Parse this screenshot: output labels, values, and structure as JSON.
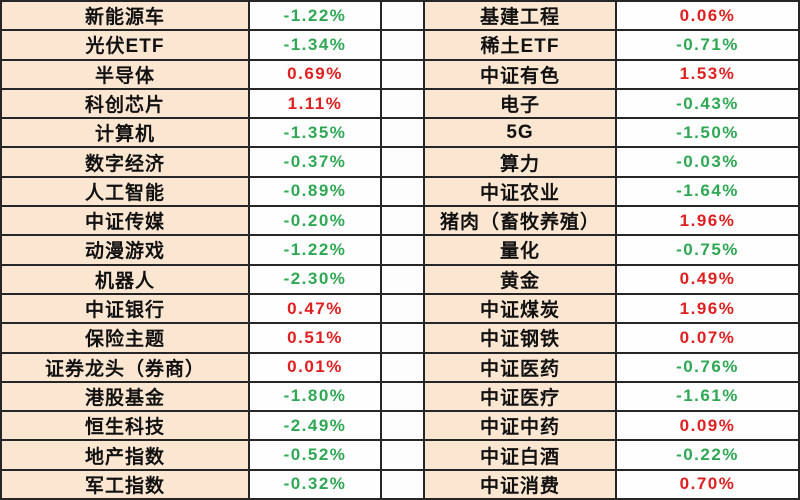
{
  "chart_data": {
    "type": "table",
    "legend_note": "positive change rendered red, negative change rendered green",
    "rows": [
      {
        "left_name": "新能源车",
        "left_change": "-1.22%",
        "right_name": "基建工程",
        "right_change": "0.06%"
      },
      {
        "left_name": "光伏ETF",
        "left_change": "-1.34%",
        "right_name": "稀土ETF",
        "right_change": "-0.71%"
      },
      {
        "left_name": "半导体",
        "left_change": "0.69%",
        "right_name": "中证有色",
        "right_change": "1.53%"
      },
      {
        "left_name": "科创芯片",
        "left_change": "1.11%",
        "right_name": "电子",
        "right_change": "-0.43%"
      },
      {
        "left_name": "计算机",
        "left_change": "-1.35%",
        "right_name": "5G",
        "right_change": "-1.50%"
      },
      {
        "left_name": "数字经济",
        "left_change": "-0.37%",
        "right_name": "算力",
        "right_change": "-0.03%"
      },
      {
        "left_name": "人工智能",
        "left_change": "-0.89%",
        "right_name": "中证农业",
        "right_change": "-1.64%"
      },
      {
        "left_name": "中证传媒",
        "left_change": "-0.20%",
        "right_name": "猪肉（畜牧养殖）",
        "right_change": "1.96%"
      },
      {
        "left_name": "动漫游戏",
        "left_change": "-1.22%",
        "right_name": "量化",
        "right_change": "-0.75%"
      },
      {
        "left_name": "机器人",
        "left_change": "-2.30%",
        "right_name": "黄金",
        "right_change": "0.49%"
      },
      {
        "left_name": "中证银行",
        "left_change": "0.47%",
        "right_name": "中证煤炭",
        "right_change": "1.96%"
      },
      {
        "left_name": "保险主题",
        "left_change": "0.51%",
        "right_name": "中证钢铁",
        "right_change": "0.07%"
      },
      {
        "left_name": "证券龙头（券商）",
        "left_change": "0.01%",
        "right_name": "中证医药",
        "right_change": "-0.76%"
      },
      {
        "left_name": "港股基金",
        "left_change": "-1.80%",
        "right_name": "中证医疗",
        "right_change": "-1.61%"
      },
      {
        "left_name": "恒生科技",
        "left_change": "-2.49%",
        "right_name": "中证中药",
        "right_change": "0.09%"
      },
      {
        "left_name": "地产指数",
        "left_change": "-0.52%",
        "right_name": "中证白酒",
        "right_change": "-0.22%"
      },
      {
        "left_name": "军工指数",
        "left_change": "-0.32%",
        "right_name": "中证消费",
        "right_change": "0.70%"
      }
    ]
  },
  "style": {
    "positive_color": "#e02020",
    "negative_color": "#2fa854",
    "name_cell_bg": "#fbe6d2",
    "value_cell_bg": "#fefefe",
    "spacer_cell_bg": "#fdfdfd",
    "border_color": "#262626",
    "name_text_color": "#111111"
  }
}
